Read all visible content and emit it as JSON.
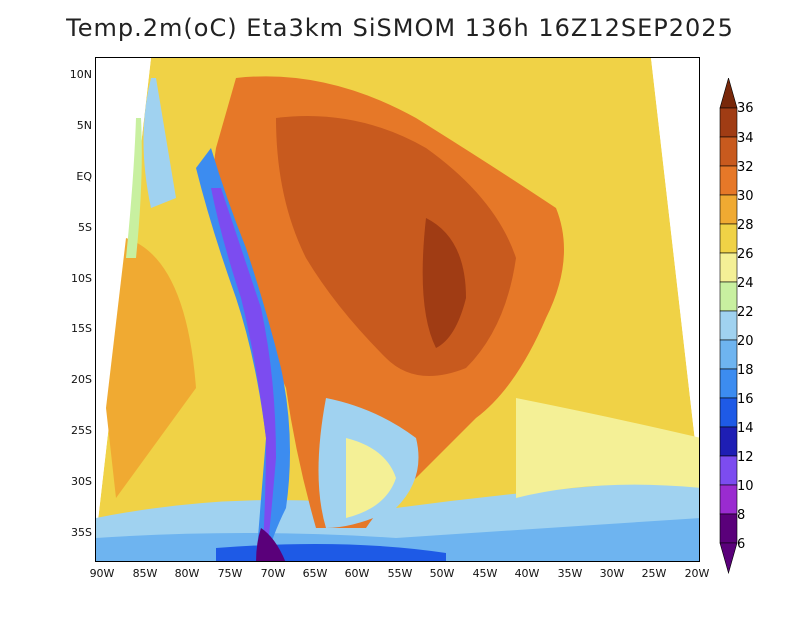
{
  "title": "Temp.2m(oC) Eta3km SiSMOM 136h 16Z12SEP2025",
  "map": {
    "lat_labels": [
      "10N",
      "5N",
      "EQ",
      "5S",
      "10S",
      "15S",
      "20S",
      "25S",
      "30S",
      "35S"
    ],
    "lon_labels": [
      "90W",
      "85W",
      "80W",
      "75W",
      "70W",
      "65W",
      "60W",
      "55W",
      "50W",
      "45W",
      "40W",
      "35W",
      "30W",
      "25W",
      "20W"
    ]
  },
  "legend": {
    "levels": [
      "6",
      "8",
      "10",
      "12",
      "14",
      "16",
      "18",
      "20",
      "22",
      "24",
      "26",
      "28",
      "30",
      "32",
      "34",
      "36"
    ],
    "colors": [
      "#5a007a",
      "#9a2bd0",
      "#7c4cf0",
      "#1e1eb4",
      "#1e5ae6",
      "#3c8cf0",
      "#6eb4f0",
      "#a0d2f0",
      "#c8f0a0",
      "#f4f096",
      "#f0d246",
      "#f0aa32",
      "#e67828",
      "#c85a1e",
      "#a03c14",
      "#78280a"
    ]
  }
}
